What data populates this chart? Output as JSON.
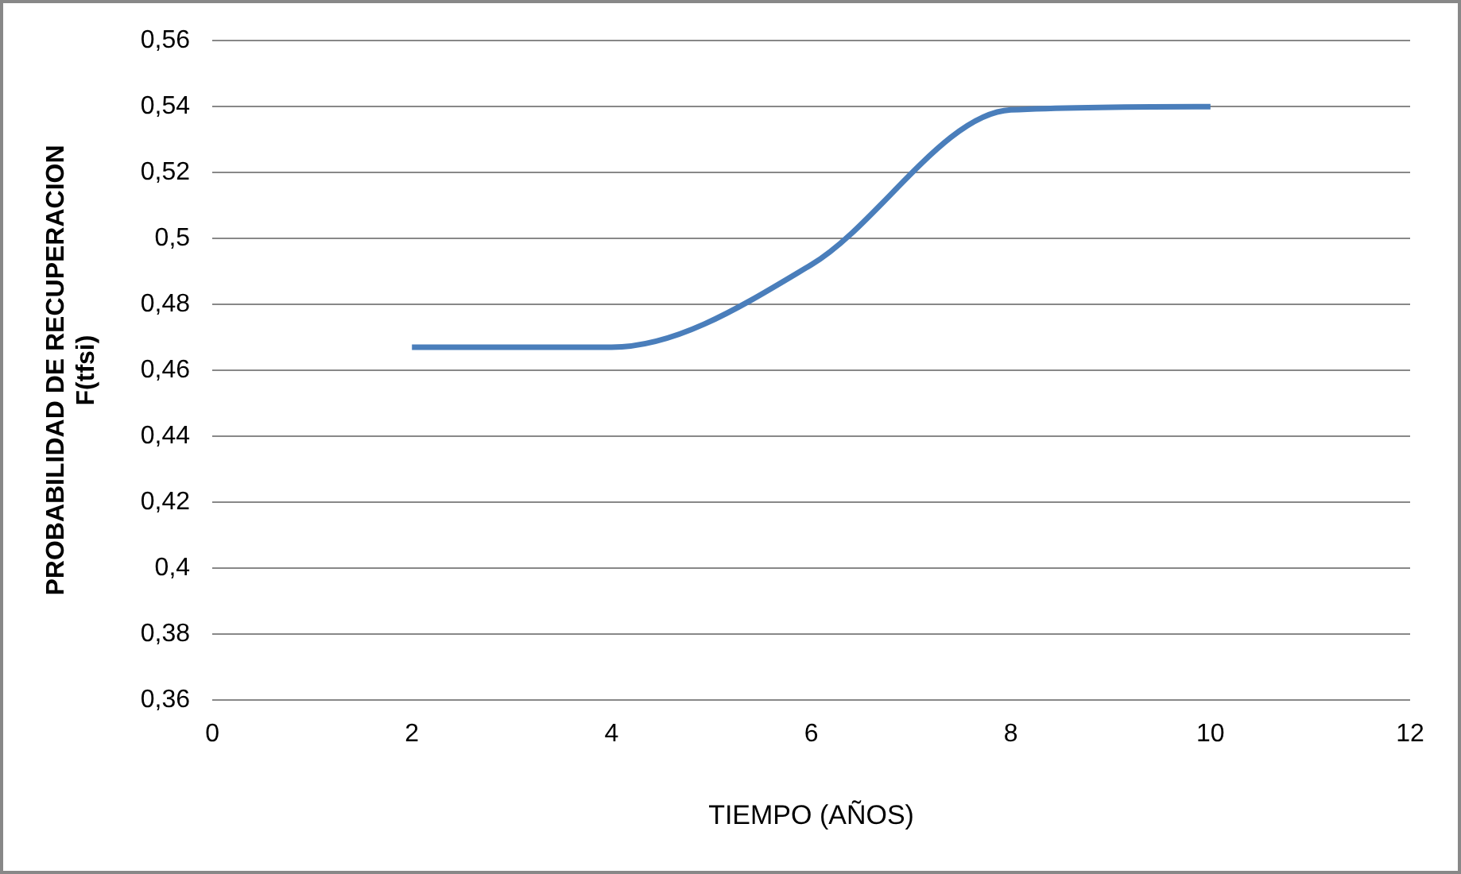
{
  "chart_data": {
    "type": "scatter",
    "xlabel": "TIEMPO (AÑOS)",
    "ylabel": "PROBABILIDAD DE RECUPERACION\nF(tfsi)",
    "series": [
      {
        "type": "line",
        "color": "#4a7ebb",
        "x": [
          2,
          4,
          6,
          8,
          10
        ],
        "values": [
          0.467,
          0.467,
          0.492,
          0.539,
          0.54
        ]
      }
    ],
    "xlim": [
      0,
      12
    ],
    "xticks": [
      0,
      2,
      4,
      6,
      8,
      10,
      12
    ],
    "ylim": [
      0.36,
      0.56
    ],
    "yticks": [
      {
        "value": 0.36,
        "label": "0,36"
      },
      {
        "value": 0.38,
        "label": "0,38"
      },
      {
        "value": 0.4,
        "label": "0,4"
      },
      {
        "value": 0.42,
        "label": "0,42"
      },
      {
        "value": 0.44,
        "label": "0,44"
      },
      {
        "value": 0.46,
        "label": "0,46"
      },
      {
        "value": 0.48,
        "label": "0,48"
      },
      {
        "value": 0.5,
        "label": "0,5"
      },
      {
        "value": 0.52,
        "label": "0,52"
      },
      {
        "value": 0.54,
        "label": "0,54"
      },
      {
        "value": 0.56,
        "label": "0,56"
      }
    ],
    "grid": "y",
    "legend": false,
    "marker": "none",
    "line_style": "solid"
  }
}
